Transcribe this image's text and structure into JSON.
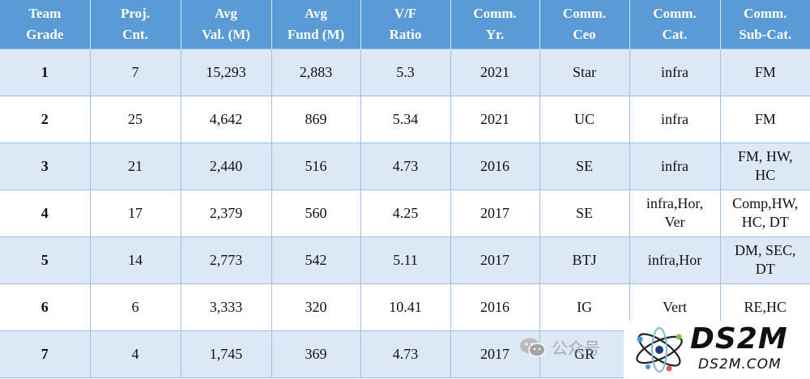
{
  "table": {
    "headers": [
      [
        "Team",
        "Grade"
      ],
      [
        "Proj.",
        "Cnt."
      ],
      [
        "Avg",
        "Val. (M)"
      ],
      [
        "Avg",
        "Fund (M)"
      ],
      [
        "V/F",
        "Ratio"
      ],
      [
        "Comm.",
        "Yr."
      ],
      [
        "Comm.",
        "Ceo"
      ],
      [
        "Comm.",
        "Cat."
      ],
      [
        "Comm.",
        "Sub-Cat."
      ]
    ],
    "rows": [
      {
        "grade": "1",
        "count": "7",
        "val": "15,293",
        "fund": "2,883",
        "ratio": "5.3",
        "year": "2021",
        "ceo": "Star",
        "cat": [
          "infra"
        ],
        "subcat": [
          "FM"
        ]
      },
      {
        "grade": "2",
        "count": "25",
        "val": "4,642",
        "fund": "869",
        "ratio": "5.34",
        "year": "2021",
        "ceo": "UC",
        "cat": [
          "infra"
        ],
        "subcat": [
          "FM"
        ]
      },
      {
        "grade": "3",
        "count": "21",
        "val": "2,440",
        "fund": "516",
        "ratio": "4.73",
        "year": "2016",
        "ceo": "SE",
        "cat": [
          "infra"
        ],
        "subcat": [
          "FM, HW,",
          "HC"
        ]
      },
      {
        "grade": "4",
        "count": "17",
        "val": "2,379",
        "fund": "560",
        "ratio": "4.25",
        "year": "2017",
        "ceo": "SE",
        "cat": [
          "infra,Hor,",
          "Ver"
        ],
        "subcat": [
          "Comp,HW,",
          "HC,  DT"
        ]
      },
      {
        "grade": "5",
        "count": "14",
        "val": "2,773",
        "fund": "542",
        "ratio": "5.11",
        "year": "2017",
        "ceo": "BTJ",
        "cat": [
          "infra,Hor"
        ],
        "subcat": [
          "DM, SEC,",
          "DT"
        ]
      },
      {
        "grade": "6",
        "count": "6",
        "val": "3,333",
        "fund": "320",
        "ratio": "10.41",
        "year": "2016",
        "ceo": "IG",
        "cat": [
          "Vert"
        ],
        "subcat": [
          "RE,HC"
        ]
      },
      {
        "grade": "7",
        "count": "4",
        "val": "1,745",
        "fund": "369",
        "ratio": "4.73",
        "year": "2017",
        "ceo": "GR",
        "cat": [
          ""
        ],
        "subcat": [
          ""
        ]
      }
    ]
  },
  "watermarks": {
    "wechat_text": "公众号",
    "wechat_icon": "wechat-icon",
    "logo_icon": "atom-icon",
    "logo_text": "DS2M",
    "logo_url_text": "DS2M.COM"
  },
  "colors": {
    "header_bg": "#5b9bd5",
    "row_shaded": "#dde8f6",
    "row_plain": "#ffffff",
    "grid": "#9dc0e6"
  }
}
